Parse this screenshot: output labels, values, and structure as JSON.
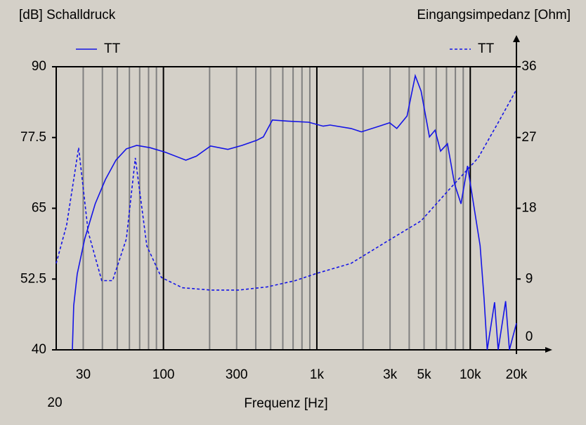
{
  "chart_data": {
    "type": "line",
    "y_axis_title": "[dB] Schalldruck",
    "y2_axis_title": "Eingangsimpedanz [Ohm]",
    "x_axis_title": "Frequenz [Hz]",
    "x_log_scale": true,
    "xlim": [
      20,
      20000
    ],
    "xticks": [
      {
        "value": 20,
        "label": "20"
      },
      30,
      100,
      300,
      {
        "value": 1000,
        "label": "1k"
      },
      {
        "value": 3000,
        "label": "3k"
      },
      {
        "value": 5000,
        "label": "5k"
      },
      {
        "value": 10000,
        "label": "10k"
      },
      {
        "value": 20000,
        "label": "20k"
      }
    ],
    "x_minor_gridlines": [
      40,
      50,
      60,
      70,
      80,
      90,
      200,
      400,
      500,
      600,
      700,
      800,
      900,
      2000,
      4000,
      6000,
      7000,
      8000,
      9000
    ],
    "ylim": [
      40,
      90
    ],
    "yticks": [
      40,
      52.5,
      65,
      77.5,
      90
    ],
    "y2lim": [
      0,
      36
    ],
    "y2ticks": [
      0,
      9,
      18,
      27,
      36
    ],
    "series": [
      {
        "name": "TT",
        "color": "#1414e6",
        "style": "solid",
        "x": [
          25.5,
          26,
          27.4,
          30.7,
          35.9,
          41.9,
          49,
          57.3,
          67,
          82,
          103,
          140,
          164,
          203,
          263,
          325,
          405,
          448,
          513,
          647,
          885,
          1100,
          1220,
          1670,
          1950,
          2550,
          2980,
          3320,
          3870,
          4380,
          4780,
          5420,
          5900,
          6400,
          7100,
          7900,
          8700,
          9600,
          10500,
          11600,
          12300,
          12900,
          14400,
          15200,
          17000,
          18000,
          20000
        ],
        "values": [
          40,
          47.8,
          53.4,
          59.6,
          65.8,
          70.1,
          73.5,
          75.5,
          76.1,
          75.7,
          74.9,
          73.5,
          74.2,
          76,
          75.4,
          76.1,
          77,
          77.6,
          80.6,
          80.4,
          80.2,
          79.5,
          79.7,
          79.1,
          78.5,
          79.5,
          80.1,
          79.1,
          81.3,
          88.4,
          85.7,
          77.6,
          78.8,
          75.1,
          76.4,
          69.3,
          65.8,
          72.5,
          65.8,
          58.4,
          49.1,
          40,
          48.4,
          40,
          48.6,
          40,
          44.7
        ]
      },
      {
        "name": "TT",
        "color": "#1414e6",
        "style": "dashed",
        "axis": "y2",
        "x": [
          20,
          23.4,
          28,
          32.3,
          39.6,
          46.6,
          57.3,
          65.6,
          78,
          97,
          133,
          203,
          311,
          474,
          723,
          990,
          1670,
          2820,
          4780,
          7300,
          11250,
          15200,
          20000
        ],
        "values": [
          11,
          15.9,
          25.7,
          15,
          8.8,
          8.8,
          14.1,
          24.4,
          13.2,
          9.2,
          7.9,
          7.6,
          7.6,
          8,
          8.8,
          9.7,
          11,
          13.7,
          16.4,
          20.4,
          24.4,
          28.9,
          33.1
        ]
      }
    ]
  }
}
